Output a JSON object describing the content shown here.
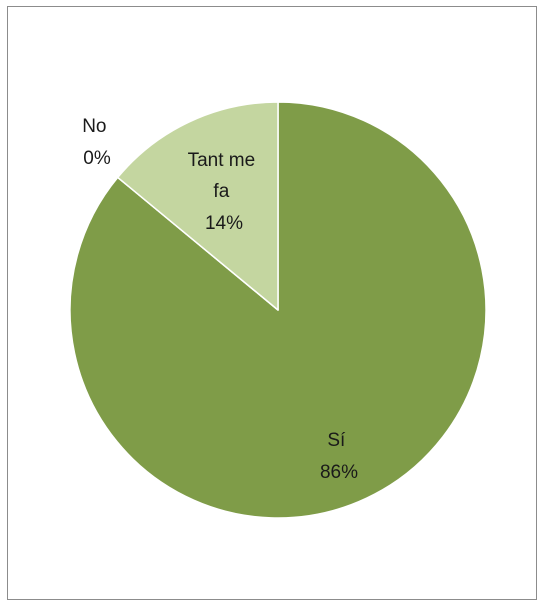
{
  "chart_data": {
    "type": "pie",
    "title": "",
    "start_angle_deg": 0,
    "direction": "clockwise",
    "slices": [
      {
        "label": "Sí",
        "value": 86,
        "value_label": "86%",
        "color": "#7f9c48"
      },
      {
        "label": "No",
        "value": 0,
        "value_label": "0%",
        "color": "#c4d6a0"
      },
      {
        "label": "Tant me fa",
        "value": 14,
        "value_label": "14%",
        "color": "#c4d6a0"
      }
    ],
    "legend": "none",
    "slice_border_color": "#ffffff"
  }
}
